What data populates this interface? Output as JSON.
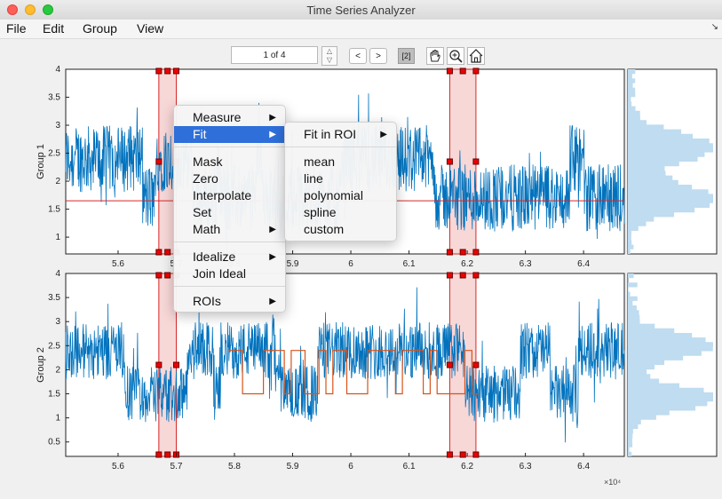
{
  "window": {
    "title": "Time Series Analyzer"
  },
  "menubar": [
    "File",
    "Edit",
    "Group",
    "View"
  ],
  "toolbar": {
    "page_text": "1 of 4",
    "prev": "<",
    "next": ">",
    "group_tag": "[2]"
  },
  "icons": [
    "hand-pan-icon",
    "zoom-in-icon",
    "home-icon",
    "spinner-up-icon",
    "spinner-down-icon",
    "dock-arrow-icon"
  ],
  "context_menu": {
    "items": [
      {
        "label": "Measure",
        "submenu": true
      },
      {
        "label": "Fit",
        "submenu": true,
        "highlighted": true
      },
      {
        "label": "Mask"
      },
      {
        "label": "Zero"
      },
      {
        "label": "Interpolate"
      },
      {
        "label": "Set"
      },
      {
        "label": "Math",
        "submenu": true
      },
      {
        "label": "Idealize",
        "submenu": true
      },
      {
        "label": "Join Ideal"
      },
      {
        "label": "ROIs",
        "submenu": true
      }
    ],
    "fit_submenu": [
      {
        "label": "Fit in ROI",
        "submenu": true
      },
      {
        "label": "mean"
      },
      {
        "label": "line"
      },
      {
        "label": "polynomial"
      },
      {
        "label": "spline"
      },
      {
        "label": "custom"
      }
    ]
  },
  "colors": {
    "trace": "#0072bd",
    "fit_line": "#d62728",
    "ideal": "#d95319",
    "roi_fill": "#f8d7d7",
    "roi_edge": "#d62728",
    "hist": "#bfdcf0",
    "highlight": "#2f6fd9"
  },
  "chart_data": [
    {
      "type": "line",
      "ylabel": "Group 1",
      "xlim": [
        5.51,
        6.47
      ],
      "ylim": [
        0.7,
        4
      ],
      "x_ticks": [
        "5.6",
        "5.7",
        "5.8",
        "5.9",
        "6",
        "6.1",
        "6.2",
        "6.3",
        "6.4"
      ],
      "y_ticks": [
        "1",
        "1.5",
        "2",
        "2.5",
        "3",
        "3.5",
        "4"
      ],
      "trace": {
        "color": "#0072bd",
        "levels": [
          2.4,
          1.7
        ],
        "x_range": [
          5.51,
          6.47
        ]
      },
      "fit_line": {
        "y": 1.65,
        "color": "#d62728"
      },
      "rois": [
        {
          "x0": 5.67,
          "x1": 5.7
        },
        {
          "x0": 6.17,
          "x1": 6.215
        }
      ],
      "histogram": {
        "orientation": "horizontal",
        "peaks": [
          1.7,
          2.6
        ]
      }
    },
    {
      "type": "line",
      "ylabel": "Group 2",
      "xlim": [
        5.51,
        6.47
      ],
      "ylim": [
        0.2,
        4
      ],
      "x_ticks": [
        "5.6",
        "5.7",
        "5.8",
        "5.9",
        "6",
        "6.1",
        "6.2",
        "6.3",
        "6.4"
      ],
      "x_exponent": "×10⁴",
      "y_ticks": [
        "0.5",
        "1",
        "1.5",
        "2",
        "2.5",
        "3",
        "3.5",
        "4"
      ],
      "trace": {
        "color": "#0072bd",
        "levels": [
          2.4,
          1.5
        ],
        "x_range": [
          5.51,
          6.47
        ]
      },
      "ideal": {
        "color": "#d95319",
        "levels": [
          2.4,
          1.5
        ],
        "x_range": [
          5.79,
          6.22
        ]
      },
      "rois": [
        {
          "x0": 5.67,
          "x1": 5.7
        },
        {
          "x0": 6.17,
          "x1": 6.215
        }
      ],
      "histogram": {
        "orientation": "horizontal",
        "peaks": [
          1.4,
          2.5
        ]
      }
    }
  ]
}
